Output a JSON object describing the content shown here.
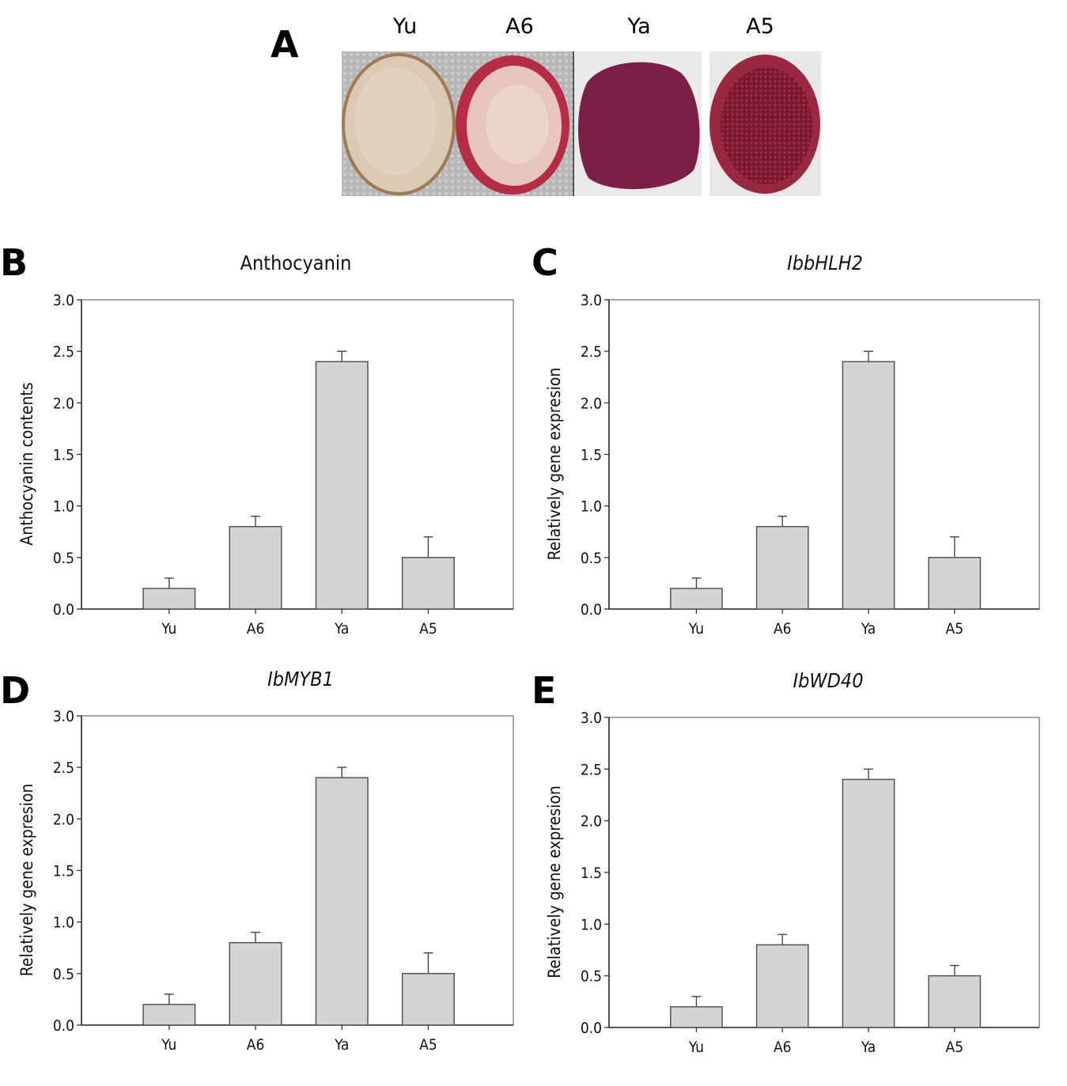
{
  "panels": {
    "A": {
      "letter": "A",
      "labels": [
        "Yu",
        "A6",
        "Ya",
        "A5"
      ]
    },
    "B": {
      "letter": "B"
    },
    "C": {
      "letter": "C"
    },
    "D": {
      "letter": "D"
    },
    "E": {
      "letter": "E"
    }
  },
  "colors": {
    "bar_fill": "#d4d4d4",
    "bar_stroke": "#555555",
    "axis": "#333333",
    "photo_bg": "#b8b8b8",
    "slice_white": "#dccdb8",
    "slice_rim": "#a8303f",
    "slice_purple": "#7a1f45",
    "slice_dark": "#8a1d38"
  },
  "chart_data": [
    {
      "id": "B",
      "type": "bar",
      "title": "Anthocyanin",
      "title_italic": false,
      "ylabel": "Anthocyanin contents",
      "xlabel": "",
      "categories": [
        "Yu",
        "A6",
        "Ya",
        "A5"
      ],
      "values": [
        0.2,
        0.8,
        2.4,
        0.5
      ],
      "errors": [
        0.1,
        0.1,
        0.1,
        0.2
      ],
      "ylim": [
        0,
        3.0
      ],
      "yticks": [
        "0.0",
        "0.5",
        "1.0",
        "1.5",
        "2.0",
        "2.5",
        "3.0"
      ],
      "grid": false
    },
    {
      "id": "C",
      "type": "bar",
      "title": "IbbHLH2",
      "title_italic": true,
      "ylabel": "Relatively gene expresion",
      "xlabel": "",
      "categories": [
        "Yu",
        "A6",
        "Ya",
        "A5"
      ],
      "values": [
        0.2,
        0.8,
        2.4,
        0.5
      ],
      "errors": [
        0.1,
        0.1,
        0.1,
        0.2
      ],
      "ylim": [
        0,
        3.0
      ],
      "yticks": [
        "0.0",
        "0.5",
        "1.0",
        "1.5",
        "2.0",
        "2.5",
        "3.0"
      ],
      "grid": false
    },
    {
      "id": "D",
      "type": "bar",
      "title": "IbMYB1",
      "title_italic": true,
      "ylabel": "Relatively gene expresion",
      "xlabel": "",
      "categories": [
        "Yu",
        "A6",
        "Ya",
        "A5"
      ],
      "values": [
        0.2,
        0.8,
        2.4,
        0.5
      ],
      "errors": [
        0.1,
        0.1,
        0.1,
        0.2
      ],
      "ylim": [
        0,
        3.0
      ],
      "yticks": [
        "0.0",
        "0.5",
        "1.0",
        "1.5",
        "2.0",
        "2.5",
        "3.0"
      ],
      "grid": false
    },
    {
      "id": "E",
      "type": "bar",
      "title": "IbWD40",
      "title_italic": true,
      "ylabel": "Relatively gene expresion",
      "xlabel": "",
      "categories": [
        "Yu",
        "A6",
        "Ya",
        "A5"
      ],
      "values": [
        0.2,
        0.8,
        2.4,
        0.5
      ],
      "errors": [
        0.1,
        0.1,
        0.1,
        0.1
      ],
      "ylim": [
        0,
        3.0
      ],
      "yticks": [
        "0.0",
        "0.5",
        "1.0",
        "1.5",
        "2.0",
        "2.5",
        "3.0"
      ],
      "grid": false
    }
  ]
}
